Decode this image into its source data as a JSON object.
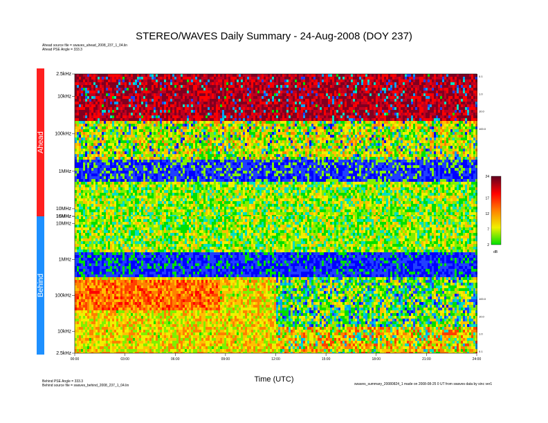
{
  "header": {
    "title": "STEREO/WAVES Daily Summary - 24-Aug-2008 (DOY 237)",
    "ahead_source": "Ahead source file = swaves_ahead_2008_237_1_04.lin",
    "ahead_pse": "Ahead PSE Angle = 333.3",
    "behind_pse": "Behind PSE Angle = 333.3",
    "behind_source": "Behind source file = swaves_behind_2008_237_1_04.lin",
    "footer_note": "swaves_summary_20080824_1 made on 2008-08-25 0 UT from swaves data by sinc ver1"
  },
  "panels": {
    "ahead_label": "Ahead",
    "behind_label": "Behind"
  },
  "colors": {
    "ahead_bar": "#ff2020",
    "behind_bar": "#1e90ff"
  },
  "chart_data": {
    "type": "heatmap",
    "title": "STEREO/WAVES Daily Summary - 24-Aug-2008 (DOY 237)",
    "xlabel": "Time (UTC)",
    "x_ticks": [
      "00:00",
      "03:00",
      "06:00",
      "09:00",
      "12:00",
      "15:00",
      "18:00",
      "21:00",
      "24:00"
    ],
    "xlim": [
      "00:00",
      "24:00"
    ],
    "ahead_panel": {
      "y_ticks_left": [
        "2.5kHz",
        "10kHz",
        "100kHz",
        "1MHz",
        "10MHz",
        "16MHz"
      ],
      "y_ticks_right": [
        "0.1",
        "1.0",
        "10.0",
        "100.0"
      ],
      "frequency_range": [
        "2.5kHz",
        "16MHz"
      ],
      "log_scale": true
    },
    "behind_panel": {
      "y_ticks_left": [
        "16MHz",
        "10MHz",
        "1MHz",
        "100kHz",
        "10kHz",
        "2.5kHz"
      ],
      "y_ticks_right": [
        "100.0",
        "10.0",
        "1.0",
        "0.1"
      ],
      "frequency_range": [
        "2.5kHz",
        "16MHz"
      ],
      "log_scale": true
    },
    "colorbar": {
      "ticks": [
        "24",
        "17",
        "12",
        "7",
        "2"
      ],
      "unit": "dB",
      "range": [
        2,
        24
      ],
      "colors": [
        "#00e000",
        "#f0f000",
        "#ff8000",
        "#ff0000",
        "#600020"
      ]
    }
  }
}
